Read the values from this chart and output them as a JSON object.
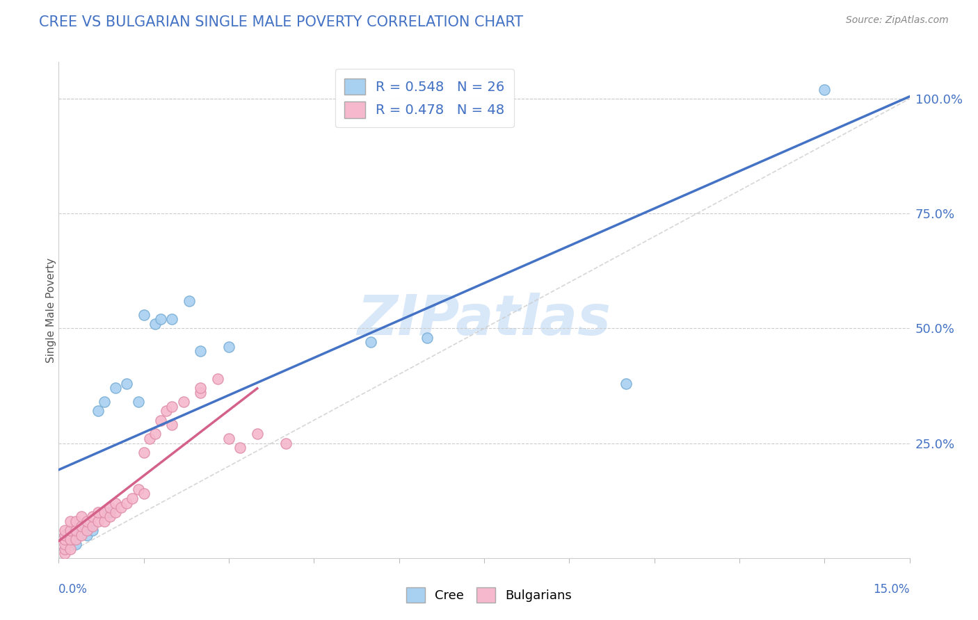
{
  "title": "CREE VS BULGARIAN SINGLE MALE POVERTY CORRELATION CHART",
  "source": "Source: ZipAtlas.com",
  "ylabel": "Single Male Poverty",
  "ylabel_ticks": [
    "25.0%",
    "50.0%",
    "75.0%",
    "100.0%"
  ],
  "ylabel_vals": [
    0.25,
    0.5,
    0.75,
    1.0
  ],
  "xlim": [
    0.0,
    0.15
  ],
  "ylim": [
    0.0,
    1.08
  ],
  "cree_R": 0.548,
  "cree_N": 26,
  "bulg_R": 0.478,
  "bulg_N": 48,
  "cree_color": "#A8D0F0",
  "bulg_color": "#F5B8CC",
  "cree_edge_color": "#7AAED6",
  "bulg_edge_color": "#E090AA",
  "cree_line_color": "#4472C4",
  "bulg_line_color": "#D4618A",
  "ref_line_color": "#CCCCCC",
  "title_color": "#4472C4",
  "watermark_color": "#D8E8F8",
  "legend_text_color": "#4472C4",
  "background_color": "#FFFFFF",
  "plot_bg_color": "#FFFFFF",
  "cree_points": [
    [
      0.001,
      0.02
    ],
    [
      0.001,
      0.05
    ],
    [
      0.002,
      0.04
    ],
    [
      0.002,
      0.06
    ],
    [
      0.003,
      0.03
    ],
    [
      0.003,
      0.06
    ],
    [
      0.004,
      0.07
    ],
    [
      0.005,
      0.05
    ],
    [
      0.006,
      0.06
    ],
    [
      0.007,
      0.32
    ],
    [
      0.008,
      0.34
    ],
    [
      0.009,
      0.1
    ],
    [
      0.01,
      0.37
    ],
    [
      0.012,
      0.38
    ],
    [
      0.014,
      0.34
    ],
    [
      0.015,
      0.53
    ],
    [
      0.017,
      0.51
    ],
    [
      0.018,
      0.52
    ],
    [
      0.02,
      0.52
    ],
    [
      0.023,
      0.56
    ],
    [
      0.025,
      0.45
    ],
    [
      0.03,
      0.46
    ],
    [
      0.055,
      0.47
    ],
    [
      0.065,
      0.48
    ],
    [
      0.1,
      0.38
    ],
    [
      0.135,
      1.02
    ]
  ],
  "bulg_points": [
    [
      0.001,
      0.01
    ],
    [
      0.001,
      0.02
    ],
    [
      0.001,
      0.03
    ],
    [
      0.001,
      0.04
    ],
    [
      0.001,
      0.05
    ],
    [
      0.001,
      0.06
    ],
    [
      0.002,
      0.02
    ],
    [
      0.002,
      0.04
    ],
    [
      0.002,
      0.06
    ],
    [
      0.002,
      0.08
    ],
    [
      0.003,
      0.04
    ],
    [
      0.003,
      0.06
    ],
    [
      0.003,
      0.08
    ],
    [
      0.004,
      0.05
    ],
    [
      0.004,
      0.07
    ],
    [
      0.004,
      0.09
    ],
    [
      0.005,
      0.06
    ],
    [
      0.005,
      0.08
    ],
    [
      0.006,
      0.07
    ],
    [
      0.006,
      0.09
    ],
    [
      0.007,
      0.08
    ],
    [
      0.007,
      0.1
    ],
    [
      0.008,
      0.08
    ],
    [
      0.008,
      0.1
    ],
    [
      0.009,
      0.09
    ],
    [
      0.009,
      0.11
    ],
    [
      0.01,
      0.1
    ],
    [
      0.01,
      0.12
    ],
    [
      0.011,
      0.11
    ],
    [
      0.012,
      0.12
    ],
    [
      0.013,
      0.13
    ],
    [
      0.014,
      0.15
    ],
    [
      0.015,
      0.14
    ],
    [
      0.015,
      0.23
    ],
    [
      0.016,
      0.26
    ],
    [
      0.017,
      0.27
    ],
    [
      0.018,
      0.3
    ],
    [
      0.019,
      0.32
    ],
    [
      0.02,
      0.29
    ],
    [
      0.02,
      0.33
    ],
    [
      0.022,
      0.34
    ],
    [
      0.025,
      0.36
    ],
    [
      0.025,
      0.37
    ],
    [
      0.028,
      0.39
    ],
    [
      0.03,
      0.26
    ],
    [
      0.032,
      0.24
    ],
    [
      0.035,
      0.27
    ],
    [
      0.04,
      0.25
    ]
  ]
}
